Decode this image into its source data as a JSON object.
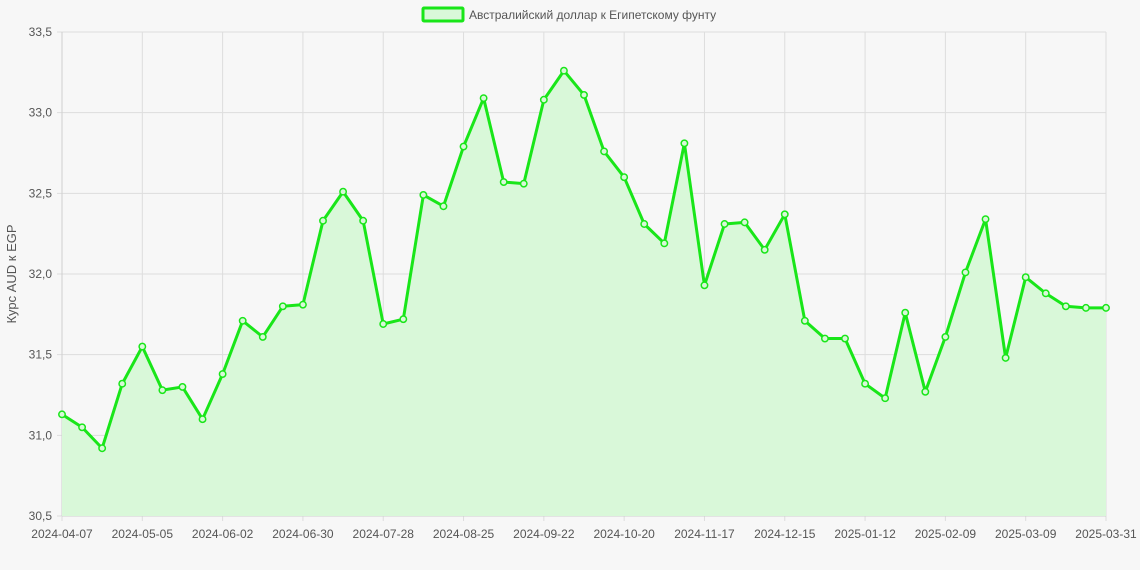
{
  "chart_data": {
    "type": "area",
    "ylabel": "Курс AUD к EGP",
    "xlabel": "",
    "legend": {
      "placement": "top-center",
      "label": "Австралийский доллар к Египетскому фунту"
    },
    "colors": {
      "line": "#19e619",
      "fill": "#d9f8d9",
      "grid": "#dddddd",
      "background": "#f7f7f7"
    },
    "grid": true,
    "ylim": [
      30.5,
      33.5
    ],
    "yticks": [
      "30,5",
      "31,0",
      "31,5",
      "32,0",
      "32,5",
      "33,0",
      "33,5"
    ],
    "ytick_values": [
      30.5,
      31.0,
      31.5,
      32.0,
      32.5,
      33.0,
      33.5
    ],
    "xticks": [
      "2024-04-07",
      "2024-05-05",
      "2024-06-02",
      "2024-06-30",
      "2024-07-28",
      "2024-08-25",
      "2024-09-22",
      "2024-10-20",
      "2024-11-17",
      "2024-12-15",
      "2025-01-12",
      "2025-02-09",
      "2025-03-09",
      "2025-03-31"
    ],
    "xtick_index": [
      0,
      4,
      8,
      12,
      16,
      20,
      24,
      28,
      32,
      36,
      40,
      44,
      48,
      52
    ],
    "x": [
      "2024-04-07",
      "2024-04-14",
      "2024-04-21",
      "2024-04-28",
      "2024-05-05",
      "2024-05-12",
      "2024-05-19",
      "2024-05-26",
      "2024-06-02",
      "2024-06-09",
      "2024-06-16",
      "2024-06-23",
      "2024-06-30",
      "2024-07-07",
      "2024-07-14",
      "2024-07-21",
      "2024-07-28",
      "2024-08-04",
      "2024-08-11",
      "2024-08-18",
      "2024-08-25",
      "2024-09-01",
      "2024-09-08",
      "2024-09-15",
      "2024-09-22",
      "2024-09-29",
      "2024-10-06",
      "2024-10-13",
      "2024-10-20",
      "2024-10-27",
      "2024-11-03",
      "2024-11-10",
      "2024-11-17",
      "2024-11-24",
      "2024-12-01",
      "2024-12-08",
      "2024-12-15",
      "2024-12-22",
      "2024-12-29",
      "2025-01-05",
      "2025-01-12",
      "2025-01-19",
      "2025-01-26",
      "2025-02-02",
      "2025-02-09",
      "2025-02-16",
      "2025-02-23",
      "2025-03-02",
      "2025-03-09",
      "2025-03-16",
      "2025-03-23",
      "2025-03-30",
      "2025-03-31"
    ],
    "series": [
      {
        "name": "Австралийский доллар к Египетскому фунту",
        "values": [
          31.13,
          31.05,
          30.92,
          31.32,
          31.55,
          31.28,
          31.3,
          31.1,
          31.38,
          31.71,
          31.61,
          31.8,
          31.81,
          32.33,
          32.51,
          32.33,
          31.69,
          31.72,
          32.49,
          32.42,
          32.79,
          33.09,
          32.57,
          32.56,
          33.08,
          33.26,
          33.11,
          32.76,
          32.6,
          32.31,
          32.19,
          32.81,
          31.93,
          32.31,
          32.32,
          32.15,
          32.37,
          31.71,
          31.6,
          31.6,
          31.32,
          31.23,
          31.76,
          31.27,
          31.61,
          32.01,
          32.34,
          31.48,
          31.98,
          31.88,
          31.8,
          31.79,
          31.79
        ]
      }
    ]
  }
}
